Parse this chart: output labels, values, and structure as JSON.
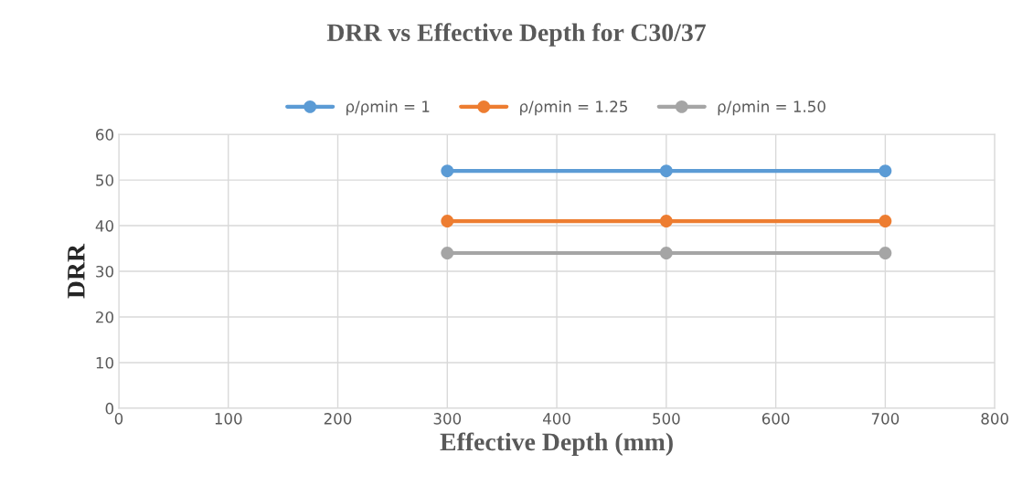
{
  "chart_data": {
    "type": "line",
    "title": "DRR vs Effective Depth for C30/37",
    "xlabel": "Effective Depth (mm)",
    "ylabel": "DRR",
    "x": [
      300,
      500,
      700
    ],
    "series": [
      {
        "name": "ρ/ρmin = 1",
        "color": "#5b9bd5",
        "values": [
          52,
          52,
          52
        ]
      },
      {
        "name": "ρ/ρmin = 1.25",
        "color": "#ed7d31",
        "values": [
          41,
          41,
          41
        ]
      },
      {
        "name": "ρ/ρmin = 1.50",
        "color": "#a5a5a5",
        "values": [
          34,
          34,
          34
        ]
      }
    ],
    "xlim": [
      0,
      800
    ],
    "xticks": [
      0,
      100,
      200,
      300,
      400,
      500,
      600,
      700,
      800
    ],
    "ylim": [
      0,
      60
    ],
    "yticks": [
      0,
      10,
      20,
      30,
      40,
      50,
      60
    ],
    "grid": true,
    "legend": "top",
    "marker": "circle",
    "line_style": "solid"
  }
}
